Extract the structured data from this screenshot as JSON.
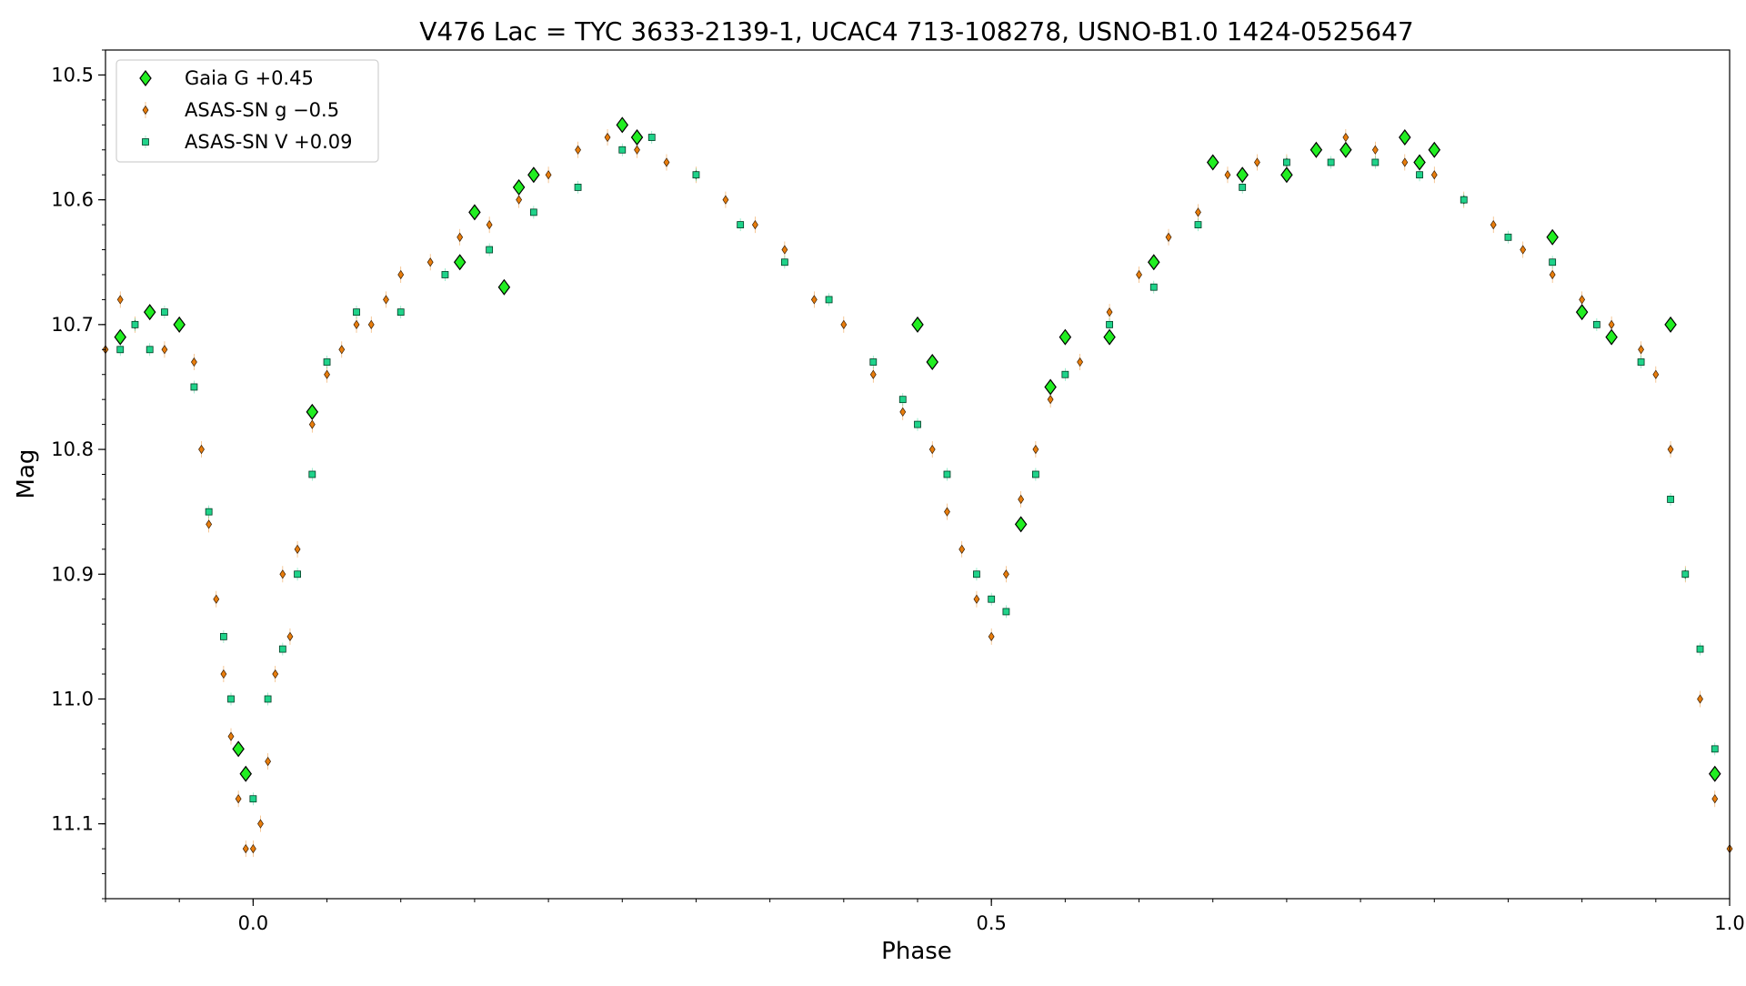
{
  "chart_data": {
    "type": "scatter",
    "title": "V476 Lac = TYC 3633-2139-1, UCAC4 713-108278, USNO-B1.0 1424-0525647",
    "xlabel": "Phase",
    "ylabel": "Mag",
    "xlim": [
      -0.1,
      1.0
    ],
    "ylim": [
      11.16,
      10.48
    ],
    "y_inverted": true,
    "x_major_ticks": [
      0.0,
      0.5,
      1.0
    ],
    "x_tick_labels": [
      "0.0",
      "0.5",
      "1.0"
    ],
    "x_minor_step": 0.05,
    "y_major_ticks": [
      10.5,
      10.6,
      10.7,
      10.8,
      10.9,
      11.0,
      11.1
    ],
    "y_tick_labels": [
      "10.5",
      "10.6",
      "10.7",
      "10.8",
      "10.9",
      "11.0",
      "11.1"
    ],
    "y_minor_step": 0.02,
    "grid": false,
    "legend_position": "top-left",
    "series": [
      {
        "name": "Gaia G +0.45",
        "marker": "diamond-large",
        "color": "#22ee22",
        "x": [
          -0.09,
          -0.07,
          -0.05,
          -0.01,
          -0.005,
          0.04,
          0.14,
          0.15,
          0.17,
          0.18,
          0.19,
          0.25,
          0.26,
          0.45,
          0.46,
          0.52,
          0.54,
          0.55,
          0.58,
          0.61,
          0.65,
          0.67,
          0.7,
          0.72,
          0.74,
          0.78,
          0.79,
          0.8,
          0.88,
          0.9,
          0.92,
          0.96,
          0.99
        ],
        "y": [
          10.71,
          10.69,
          10.7,
          11.04,
          11.06,
          10.77,
          10.65,
          10.61,
          10.67,
          10.59,
          10.58,
          10.54,
          10.55,
          10.7,
          10.73,
          10.86,
          10.75,
          10.71,
          10.71,
          10.65,
          10.57,
          10.58,
          10.58,
          10.56,
          10.56,
          10.55,
          10.57,
          10.56,
          10.63,
          10.69,
          10.71,
          10.7,
          11.06
        ]
      },
      {
        "name": "ASAS-SN g −0.5",
        "marker": "diamond-small",
        "color": "#e87d0c",
        "x": [
          -0.1,
          -0.09,
          -0.08,
          -0.07,
          -0.06,
          -0.05,
          -0.04,
          -0.035,
          -0.03,
          -0.025,
          -0.02,
          -0.015,
          -0.01,
          -0.005,
          0.0,
          0.005,
          0.01,
          0.015,
          0.02,
          0.025,
          0.03,
          0.04,
          0.05,
          0.06,
          0.07,
          0.08,
          0.09,
          0.1,
          0.12,
          0.14,
          0.16,
          0.18,
          0.2,
          0.22,
          0.24,
          0.26,
          0.28,
          0.3,
          0.32,
          0.34,
          0.36,
          0.38,
          0.4,
          0.42,
          0.44,
          0.46,
          0.47,
          0.48,
          0.49,
          0.5,
          0.51,
          0.52,
          0.53,
          0.54,
          0.56,
          0.58,
          0.6,
          0.62,
          0.64,
          0.66,
          0.68,
          0.7,
          0.72,
          0.74,
          0.76,
          0.78,
          0.8,
          0.82,
          0.84,
          0.86,
          0.88,
          0.9,
          0.92,
          0.94,
          0.95,
          0.96,
          0.97,
          0.98,
          0.99,
          1.0
        ],
        "y": [
          10.72,
          10.68,
          10.7,
          10.69,
          10.72,
          10.7,
          10.73,
          10.8,
          10.86,
          10.92,
          10.98,
          11.03,
          11.08,
          11.12,
          11.12,
          11.1,
          11.05,
          10.98,
          10.9,
          10.95,
          10.88,
          10.78,
          10.74,
          10.72,
          10.7,
          10.7,
          10.68,
          10.66,
          10.65,
          10.63,
          10.62,
          10.6,
          10.58,
          10.56,
          10.55,
          10.56,
          10.57,
          10.58,
          10.6,
          10.62,
          10.64,
          10.68,
          10.7,
          10.74,
          10.77,
          10.8,
          10.85,
          10.88,
          10.92,
          10.95,
          10.9,
          10.84,
          10.8,
          10.76,
          10.73,
          10.69,
          10.66,
          10.63,
          10.61,
          10.58,
          10.57,
          10.57,
          10.56,
          10.55,
          10.56,
          10.57,
          10.58,
          10.6,
          10.62,
          10.64,
          10.66,
          10.68,
          10.7,
          10.72,
          10.74,
          10.8,
          10.9,
          11.0,
          11.08,
          11.12
        ]
      },
      {
        "name": "ASAS-SN V +0.09",
        "marker": "square",
        "color": "#1fd38a",
        "x": [
          -0.09,
          -0.08,
          -0.07,
          -0.06,
          -0.05,
          -0.04,
          -0.03,
          -0.02,
          -0.015,
          -0.01,
          0.0,
          0.01,
          0.02,
          0.03,
          0.04,
          0.05,
          0.07,
          0.1,
          0.13,
          0.16,
          0.19,
          0.22,
          0.25,
          0.27,
          0.3,
          0.33,
          0.36,
          0.39,
          0.42,
          0.44,
          0.45,
          0.47,
          0.49,
          0.5,
          0.51,
          0.53,
          0.55,
          0.58,
          0.61,
          0.64,
          0.67,
          0.7,
          0.73,
          0.76,
          0.79,
          0.82,
          0.85,
          0.88,
          0.91,
          0.94,
          0.96,
          0.97,
          0.98,
          0.99
        ],
        "y": [
          10.72,
          10.7,
          10.72,
          10.69,
          10.7,
          10.75,
          10.85,
          10.95,
          11.0,
          11.04,
          11.08,
          11.0,
          10.96,
          10.9,
          10.82,
          10.73,
          10.69,
          10.69,
          10.66,
          10.64,
          10.61,
          10.59,
          10.56,
          10.55,
          10.58,
          10.62,
          10.65,
          10.68,
          10.73,
          10.76,
          10.78,
          10.82,
          10.9,
          10.92,
          10.93,
          10.82,
          10.74,
          10.7,
          10.67,
          10.62,
          10.59,
          10.57,
          10.57,
          10.57,
          10.58,
          10.6,
          10.63,
          10.65,
          10.7,
          10.73,
          10.84,
          10.9,
          10.96,
          11.04
        ]
      }
    ]
  }
}
